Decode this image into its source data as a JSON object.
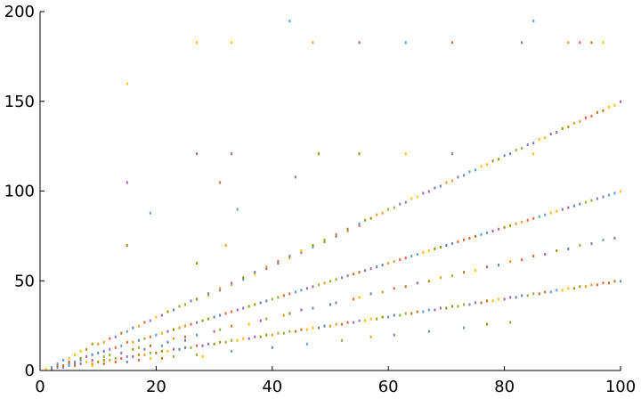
{
  "chart_data": {
    "type": "scatter",
    "title": "",
    "xlabel": "",
    "ylabel": "",
    "xlim": [
      0,
      100
    ],
    "ylim": [
      0,
      200
    ],
    "x_ticks": [
      0,
      20,
      40,
      60,
      80,
      100
    ],
    "y_ticks": [
      0,
      50,
      100,
      150,
      200
    ],
    "x_tick_labels": [
      "0",
      "20",
      "40",
      "60",
      "80",
      "100"
    ],
    "y_tick_labels": [
      "0",
      "50",
      "100",
      "150",
      "200"
    ],
    "grid": false,
    "legend": "none",
    "colors": [
      "#5e81b5",
      "#e19c24",
      "#8fb032",
      "#eb6235",
      "#8778b3",
      "#c56e1a",
      "#5d9ec7",
      "#ffbf00",
      "#a5609d",
      "#929600"
    ],
    "marker": "point",
    "note": "Dense point cloud of values y(x) for integer x from 1 to 100; points lie in vertical columns, dense near the bottom, with sloped streaks following y≈1.5x and y≈x.",
    "series": [
      {
        "x": [
          1,
          2,
          2,
          3,
          3,
          3,
          4,
          4,
          4,
          5,
          5,
          5,
          5,
          6,
          6,
          6,
          6,
          7,
          7,
          7,
          7,
          8,
          8,
          8,
          9,
          9,
          9,
          9,
          9,
          10,
          10,
          10,
          11,
          11,
          11,
          11,
          11,
          12,
          12,
          12,
          12,
          13,
          13,
          13,
          13,
          14,
          14,
          14,
          14,
          15,
          15,
          15,
          15,
          15,
          15,
          15,
          16,
          16,
          16,
          16,
          17,
          17,
          17,
          17,
          17,
          18,
          18,
          18,
          18,
          19,
          19,
          19,
          19,
          19,
          19,
          20,
          20,
          20,
          21,
          21,
          21,
          21,
          21,
          22,
          22,
          22,
          22,
          23,
          23,
          23,
          23,
          23,
          24,
          24,
          24,
          25,
          25,
          25,
          25,
          25,
          26,
          26,
          26,
          27,
          27,
          27,
          27,
          27,
          27,
          27,
          27,
          28,
          28,
          28,
          29,
          29,
          29,
          29,
          30,
          30,
          30,
          31,
          31,
          31,
          31,
          31,
          31,
          32,
          32,
          32,
          33,
          33,
          33,
          33,
          33,
          33,
          33,
          33,
          34,
          34,
          34,
          35,
          35,
          35,
          35,
          36,
          36,
          36,
          37,
          37,
          37,
          37,
          38,
          38,
          38,
          39,
          39,
          39,
          39,
          39,
          40,
          40,
          40,
          41,
          41,
          41,
          41,
          42,
          42,
          42,
          43,
          43,
          43,
          43,
          43,
          43,
          44,
          44,
          44,
          45,
          45,
          45,
          45,
          45,
          46,
          46,
          46,
          47,
          47,
          47,
          47,
          47,
          47,
          48,
          48,
          48,
          49,
          49,
          49,
          49,
          50,
          50,
          50,
          51,
          51,
          51,
          51,
          51,
          52,
          52,
          52,
          53,
          53,
          53,
          53,
          54,
          54,
          54,
          55,
          55,
          55,
          55,
          55,
          55,
          55,
          56,
          56,
          56,
          57,
          57,
          57,
          57,
          57,
          58,
          58,
          58,
          59,
          59,
          59,
          59,
          60,
          60,
          60,
          61,
          61,
          61,
          61,
          61,
          62,
          62,
          62,
          63,
          63,
          63,
          63,
          63,
          63,
          64,
          64,
          64,
          65,
          65,
          65,
          65,
          66,
          66,
          66,
          67,
          67,
          67,
          67,
          67,
          68,
          68,
          68,
          69,
          69,
          69,
          69,
          70,
          70,
          70,
          71,
          71,
          71,
          71,
          71,
          71,
          72,
          72,
          72,
          73,
          73,
          73,
          73,
          73,
          74,
          74,
          74,
          75,
          75,
          75,
          75,
          76,
          76,
          76,
          77,
          77,
          77,
          77,
          77,
          78,
          78,
          78,
          79,
          79,
          79,
          79,
          80,
          80,
          80,
          81,
          81,
          81,
          81,
          81,
          82,
          82,
          82,
          83,
          83,
          83,
          83,
          83,
          84,
          84,
          84,
          85,
          85,
          85,
          85,
          85,
          85,
          86,
          86,
          86,
          87,
          87,
          87,
          87,
          88,
          88,
          88,
          89,
          89,
          89,
          89,
          90,
          90,
          90,
          91,
          91,
          91,
          91,
          91,
          92,
          92,
          92,
          93,
          93,
          93,
          93,
          93,
          94,
          94,
          94,
          95,
          95,
          95,
          95,
          95,
          96,
          96,
          96,
          97,
          97,
          97,
          97,
          97,
          98,
          98,
          98,
          99,
          99,
          99,
          99,
          100,
          100,
          100
        ],
        "y": [
          1,
          1,
          2,
          2,
          3,
          4,
          2,
          3,
          6,
          4,
          5,
          3,
          7,
          3,
          5,
          9,
          4,
          6,
          11,
          4,
          7,
          5,
          8,
          12,
          3,
          6,
          15,
          9,
          4,
          5,
          10,
          15,
          6,
          11,
          16,
          8,
          4,
          6,
          9,
          18,
          12,
          7,
          13,
          19,
          5,
          7,
          10,
          21,
          14,
          8,
          16,
          22,
          160,
          105,
          70,
          5,
          8,
          12,
          24,
          16,
          9,
          17,
          25,
          13,
          6,
          9,
          18,
          27,
          12,
          10,
          19,
          28,
          14,
          88,
          7,
          10,
          20,
          30,
          7,
          14,
          21,
          31,
          11,
          11,
          22,
          33,
          16,
          12,
          23,
          34,
          18,
          8,
          12,
          24,
          36,
          13,
          25,
          37,
          19,
          17,
          13,
          26,
          39,
          9,
          14,
          27,
          40,
          20,
          183,
          121,
          60,
          8,
          14,
          28,
          42,
          15,
          29,
          43,
          22,
          15,
          30,
          45,
          16,
          31,
          46,
          23,
          105,
          70,
          16,
          32,
          48,
          17,
          33,
          49,
          25,
          11,
          183,
          121,
          90,
          17,
          34,
          51,
          18,
          35,
          52,
          26,
          18,
          36,
          54,
          19,
          37,
          55,
          28,
          19,
          38,
          57,
          20,
          39,
          58,
          29,
          13,
          20,
          40,
          60,
          21,
          41,
          61,
          31,
          21,
          42,
          63,
          22,
          43,
          64,
          32,
          195,
          108,
          22,
          44,
          66,
          23,
          45,
          67,
          34,
          15,
          23,
          46,
          69,
          24,
          47,
          70,
          35,
          183,
          121,
          24,
          48,
          72,
          25,
          49,
          73,
          37,
          25,
          50,
          75,
          26,
          51,
          76,
          38,
          17,
          26,
          52,
          78,
          27,
          53,
          79,
          40,
          27,
          54,
          81,
          28,
          55,
          82,
          41,
          183,
          121,
          28,
          56,
          84,
          29,
          57,
          85,
          43,
          19,
          29,
          58,
          87,
          30,
          59,
          88,
          44,
          30,
          60,
          90,
          31,
          61,
          91,
          46,
          20,
          31,
          62,
          93,
          32,
          63,
          94,
          47,
          183,
          121,
          32,
          64,
          96,
          33,
          65,
          97,
          49,
          33,
          66,
          99,
          34,
          67,
          100,
          50,
          22,
          34,
          68,
          102,
          35,
          69,
          103,
          52,
          35,
          70,
          105,
          36,
          71,
          106,
          53,
          183,
          121,
          36,
          72,
          108,
          37,
          73,
          109,
          55,
          24,
          37,
          74,
          111,
          38,
          75,
          112,
          56,
          38,
          76,
          114,
          39,
          77,
          115,
          58,
          26,
          39,
          78,
          117,
          40,
          79,
          118,
          59,
          40,
          80,
          120,
          41,
          81,
          121,
          61,
          27,
          41,
          82,
          123,
          42,
          83,
          124,
          62,
          183,
          42,
          84,
          126,
          43,
          85,
          127,
          64,
          195,
          121,
          43,
          86,
          129,
          44,
          87,
          130,
          65,
          44,
          88,
          132,
          45,
          89,
          133,
          67,
          45,
          90,
          135,
          46,
          91,
          136,
          68,
          183,
          46,
          92,
          138,
          47,
          93,
          139,
          70,
          183,
          47,
          94,
          141,
          48,
          95,
          142,
          71,
          183,
          48,
          96,
          144,
          49,
          97,
          145,
          73,
          183,
          49,
          98,
          147,
          50,
          99,
          148,
          74,
          50,
          100,
          150
        ]
      }
    ]
  }
}
